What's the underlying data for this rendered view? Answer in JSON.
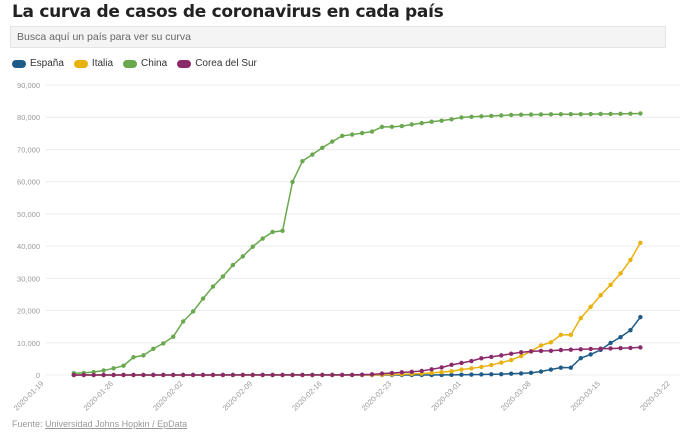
{
  "title": "La curva de casos de coronavirus en cada país",
  "search": {
    "placeholder": "Busca aquí un país para ver su curva"
  },
  "source": {
    "label": "Fuente:",
    "link_text": "Universidad Johns Hopkin / EpData"
  },
  "chart_data": {
    "type": "line",
    "title": "",
    "xlabel": "",
    "ylabel": "",
    "ylim": [
      0,
      90000
    ],
    "y_ticks": [
      "0",
      "10,000",
      "20,000",
      "30,000",
      "40,000",
      "50,000",
      "60,000",
      "70,000",
      "80,000",
      "90,000"
    ],
    "x_ticks": [
      "2020-01-19",
      "2020-01-26",
      "2020-02-02",
      "2020-02-09",
      "2020-02-16",
      "2020-02-23",
      "2020-03-01",
      "2020-03-08",
      "2020-03-15",
      "2020-03-22"
    ],
    "grid": true,
    "legend_position": "top-left",
    "x": [
      "2020-01-22",
      "2020-01-23",
      "2020-01-24",
      "2020-01-25",
      "2020-01-26",
      "2020-01-27",
      "2020-01-28",
      "2020-01-29",
      "2020-01-30",
      "2020-01-31",
      "2020-02-01",
      "2020-02-02",
      "2020-02-03",
      "2020-02-04",
      "2020-02-05",
      "2020-02-06",
      "2020-02-07",
      "2020-02-08",
      "2020-02-09",
      "2020-02-10",
      "2020-02-11",
      "2020-02-12",
      "2020-02-13",
      "2020-02-14",
      "2020-02-15",
      "2020-02-16",
      "2020-02-17",
      "2020-02-18",
      "2020-02-19",
      "2020-02-20",
      "2020-02-21",
      "2020-02-22",
      "2020-02-23",
      "2020-02-24",
      "2020-02-25",
      "2020-02-26",
      "2020-02-27",
      "2020-02-28",
      "2020-02-29",
      "2020-03-01",
      "2020-03-02",
      "2020-03-03",
      "2020-03-04",
      "2020-03-05",
      "2020-03-06",
      "2020-03-07",
      "2020-03-08",
      "2020-03-09",
      "2020-03-10",
      "2020-03-11",
      "2020-03-12",
      "2020-03-13",
      "2020-03-14",
      "2020-03-15",
      "2020-03-16",
      "2020-03-17",
      "2020-03-18",
      "2020-03-19"
    ],
    "series": [
      {
        "name": "España",
        "color": "#1e5b87",
        "values": [
          0,
          0,
          0,
          0,
          0,
          0,
          0,
          0,
          0,
          1,
          1,
          1,
          1,
          1,
          1,
          1,
          1,
          1,
          2,
          2,
          2,
          2,
          2,
          2,
          2,
          2,
          2,
          2,
          2,
          2,
          2,
          2,
          2,
          2,
          6,
          13,
          15,
          32,
          45,
          84,
          120,
          165,
          222,
          259,
          400,
          500,
          673,
          1073,
          1695,
          2277,
          2277,
          5232,
          6391,
          7798,
          9942,
          11748,
          13910,
          17963
        ]
      },
      {
        "name": "Italia",
        "color": "#e8b10e",
        "values": [
          0,
          0,
          0,
          0,
          0,
          0,
          0,
          0,
          0,
          2,
          2,
          2,
          2,
          2,
          2,
          2,
          3,
          3,
          3,
          3,
          3,
          3,
          3,
          3,
          3,
          3,
          3,
          3,
          3,
          3,
          20,
          62,
          155,
          229,
          322,
          453,
          655,
          888,
          1128,
          1694,
          2036,
          2502,
          3089,
          3858,
          4636,
          5883,
          7375,
          9172,
          10149,
          12462,
          12462,
          17660,
          21157,
          24747,
          27980,
          31506,
          35713,
          41035
        ]
      },
      {
        "name": "China",
        "color": "#6aa84f",
        "values": [
          548,
          643,
          920,
          1406,
          2075,
          2877,
          5509,
          6087,
          8141,
          9802,
          11891,
          16630,
          19716,
          23707,
          27440,
          30587,
          34110,
          36814,
          39829,
          42354,
          44386,
          44759,
          59895,
          66358,
          68413,
          70513,
          72434,
          74211,
          74619,
          75077,
          75550,
          77001,
          77022,
          77241,
          77754,
          78166,
          78600,
          78928,
          79356,
          79932,
          80136,
          80261,
          80386,
          80537,
          80690,
          80770,
          80823,
          80860,
          80887,
          80921,
          80932,
          80945,
          80977,
          81003,
          81033,
          81058,
          81102,
          81156
        ]
      },
      {
        "name": "Corea del Sur",
        "color": "#8b2a6b",
        "values": [
          1,
          1,
          2,
          2,
          3,
          4,
          4,
          4,
          4,
          11,
          12,
          15,
          15,
          16,
          19,
          23,
          24,
          24,
          25,
          27,
          28,
          28,
          28,
          28,
          28,
          29,
          30,
          31,
          31,
          104,
          204,
          433,
          602,
          833,
          977,
          1261,
          1766,
          2337,
          3150,
          3736,
          4335,
          5186,
          5621,
          6088,
          6593,
          7041,
          7314,
          7478,
          7513,
          7755,
          7869,
          7979,
          8086,
          8162,
          8236,
          8320,
          8413,
          8565
        ]
      }
    ]
  }
}
